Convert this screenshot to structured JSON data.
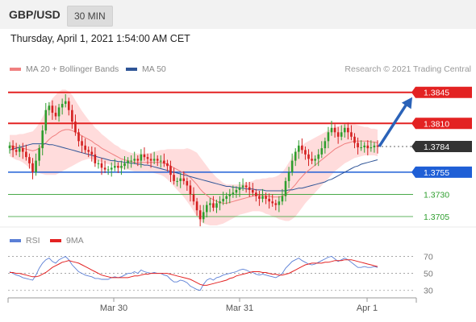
{
  "header": {
    "pair": "GBP/USD",
    "timeframe": "30 MIN"
  },
  "datetime": "Thursday, April 1, 2021 1:54:00 AM CET",
  "legend": {
    "ma": {
      "label": "MA 20 + Bollinger Bands",
      "color": "#f08080"
    },
    "ma50": {
      "label": "MA 50",
      "color": "#2f5597"
    },
    "credit": "Research © 2021 Trading Central"
  },
  "rsi_legend": {
    "rsi": {
      "label": "RSI",
      "color": "#5b7fd6"
    },
    "ma9": {
      "label": "9MA",
      "color": "#e32222"
    }
  },
  "colors": {
    "up": "#2e9e2e",
    "down": "#d42020",
    "resistance": "#e32222",
    "support": "#1f5fd6",
    "target": "#2e9e2e",
    "current": "#333333",
    "arrow": "#2a62b8",
    "band": "#ffd6d6"
  },
  "chart_data": [
    {
      "type": "candlestick",
      "x_ticks": [
        "Mar 30",
        "Mar 31",
        "Apr 1"
      ],
      "ylim": [
        1.3695,
        1.3862
      ],
      "levels": [
        {
          "label": "1.3845",
          "value": 1.3845,
          "kind": "resistance"
        },
        {
          "label": "1.3810",
          "value": 1.381,
          "kind": "resistance"
        },
        {
          "label": "1.3784",
          "value": 1.3784,
          "kind": "current"
        },
        {
          "label": "1.3755",
          "value": 1.3755,
          "kind": "support"
        },
        {
          "label": "1.3730",
          "value": 1.373,
          "kind": "target"
        },
        {
          "label": "1.3705",
          "value": 1.3705,
          "kind": "target"
        }
      ],
      "close": [
        1.3785,
        1.378,
        1.3778,
        1.3782,
        1.3778,
        1.3772,
        1.3765,
        1.3755,
        1.3768,
        1.3782,
        1.3802,
        1.3825,
        1.383,
        1.3822,
        1.3818,
        1.3828,
        1.3832,
        1.3835,
        1.3825,
        1.3812,
        1.38,
        1.379,
        1.3785,
        1.378,
        1.3778,
        1.3775,
        1.3765,
        1.3765,
        1.376,
        1.3758,
        1.3758,
        1.376,
        1.3762,
        1.376,
        1.3762,
        1.3765,
        1.3768,
        1.3768,
        1.377,
        1.3768,
        1.3775,
        1.3772,
        1.377,
        1.3768,
        1.377,
        1.3768,
        1.3768,
        1.3765,
        1.3762,
        1.3752,
        1.3745,
        1.3745,
        1.3748,
        1.3745,
        1.374,
        1.373,
        1.3722,
        1.3712,
        1.3702,
        1.371,
        1.3718,
        1.372,
        1.3715,
        1.372,
        1.3722,
        1.3725,
        1.3728,
        1.373,
        1.3732,
        1.3735,
        1.3738,
        1.374,
        1.3738,
        1.3735,
        1.3732,
        1.3728,
        1.3725,
        1.3728,
        1.3725,
        1.3722,
        1.372,
        1.3718,
        1.3722,
        1.3728,
        1.3745,
        1.3755,
        1.3768,
        1.3778,
        1.3785,
        1.378,
        1.3775,
        1.377,
        1.3768,
        1.377,
        1.3775,
        1.3782,
        1.379,
        1.38,
        1.3805,
        1.38,
        1.3795,
        1.38,
        1.3805,
        1.38,
        1.3795,
        1.3788,
        1.3783,
        1.3783,
        1.3785,
        1.3782,
        1.3783,
        1.3785,
        1.3784
      ],
      "ma20": [
        1.3785,
        1.3784,
        1.3783,
        1.3783,
        1.3782,
        1.3781,
        1.378,
        1.3779,
        1.378,
        1.3782,
        1.3785,
        1.3788,
        1.3792,
        1.3795,
        1.3797,
        1.38,
        1.3802,
        1.3803,
        1.3803,
        1.3802,
        1.38,
        1.3798,
        1.3796,
        1.3794,
        1.3792,
        1.379,
        1.3787,
        1.3785,
        1.3782,
        1.378,
        1.3778,
        1.3776,
        1.3774,
        1.3772,
        1.377,
        1.3769,
        1.3768,
        1.3767,
        1.3766,
        1.3766,
        1.3766,
        1.3766,
        1.3766,
        1.3766,
        1.3766,
        1.3766,
        1.3766,
        1.3765,
        1.3764,
        1.3762,
        1.376,
        1.3758,
        1.3756,
        1.3754,
        1.3752,
        1.3749,
        1.3745,
        1.3741,
        1.3736,
        1.3732,
        1.3729,
        1.3726,
        1.3724,
        1.3722,
        1.3721,
        1.372,
        1.372,
        1.3721,
        1.3722,
        1.3723,
        1.3724,
        1.3725,
        1.3726,
        1.3727,
        1.3728,
        1.3729,
        1.3729,
        1.3729,
        1.3728,
        1.3728,
        1.3727,
        1.3727,
        1.3727,
        1.3728,
        1.373,
        1.3733,
        1.3737,
        1.3741,
        1.3746,
        1.375,
        1.3754,
        1.3757,
        1.376,
        1.3763,
        1.3766,
        1.3769,
        1.3772,
        1.3775,
        1.3778,
        1.3781,
        1.3783,
        1.3785,
        1.3787,
        1.3788,
        1.3789,
        1.379,
        1.379,
        1.379,
        1.379,
        1.379,
        1.3789,
        1.3789,
        1.3788
      ],
      "bb_width": [
        0.0012,
        0.0013,
        0.0014,
        0.0015,
        0.0016,
        0.0018,
        0.002,
        0.0022,
        0.0025,
        0.0028,
        0.0032,
        0.0036,
        0.004,
        0.0043,
        0.0045,
        0.0046,
        0.0046,
        0.0045,
        0.0043,
        0.004,
        0.0036,
        0.0032,
        0.0028,
        0.0025,
        0.0022,
        0.002,
        0.0018,
        0.0017,
        0.0016,
        0.0015,
        0.0014,
        0.0013,
        0.0012,
        0.0012,
        0.0011,
        0.0011,
        0.001,
        0.001,
        0.001,
        0.001,
        0.001,
        0.001,
        0.001,
        0.0011,
        0.0012,
        0.0013,
        0.0014,
        0.0015,
        0.0017,
        0.0019,
        0.0021,
        0.0023,
        0.0025,
        0.0027,
        0.003,
        0.0032,
        0.0034,
        0.0036,
        0.0036,
        0.0035,
        0.0033,
        0.0031,
        0.0029,
        0.0027,
        0.0025,
        0.0023,
        0.0021,
        0.002,
        0.0019,
        0.0018,
        0.0017,
        0.0017,
        0.0017,
        0.0017,
        0.0017,
        0.0018,
        0.0018,
        0.0019,
        0.002,
        0.0021,
        0.0022,
        0.0023,
        0.0025,
        0.0027,
        0.003,
        0.0033,
        0.0035,
        0.0036,
        0.0036,
        0.0035,
        0.0034,
        0.0033,
        0.0032,
        0.0031,
        0.003,
        0.0029,
        0.0028,
        0.0027,
        0.0026,
        0.0025,
        0.0024,
        0.0023,
        0.0022,
        0.0021,
        0.002,
        0.0019,
        0.0018,
        0.0017,
        0.0016,
        0.0016,
        0.0015,
        0.0015,
        0.0015
      ],
      "ma50": [
        1.378,
        1.3781,
        1.3782,
        1.3783,
        1.3784,
        1.3785,
        1.3786,
        1.3787,
        1.3787,
        1.3787,
        1.3787,
        1.3787,
        1.3786,
        1.3786,
        1.3785,
        1.3784,
        1.3783,
        1.3782,
        1.3781,
        1.378,
        1.3779,
        1.3778,
        1.3777,
        1.3776,
        1.3775,
        1.3774,
        1.3773,
        1.3772,
        1.3771,
        1.377,
        1.3769,
        1.3768,
        1.3768,
        1.3767,
        1.3767,
        1.3766,
        1.3766,
        1.3765,
        1.3765,
        1.3764,
        1.3764,
        1.3763,
        1.3763,
        1.3762,
        1.3761,
        1.376,
        1.3759,
        1.3758,
        1.3757,
        1.3756,
        1.3755,
        1.3754,
        1.3753,
        1.3752,
        1.3751,
        1.375,
        1.3749,
        1.3748,
        1.3747,
        1.3746,
        1.3745,
        1.3744,
        1.3743,
        1.3742,
        1.3741,
        1.374,
        1.3739,
        1.3739,
        1.3738,
        1.3738,
        1.3737,
        1.3737,
        1.3736,
        1.3736,
        1.3736,
        1.3735,
        1.3735,
        1.3735,
        1.3734,
        1.3734,
        1.3734,
        1.3734,
        1.3734,
        1.3734,
        1.3734,
        1.3735,
        1.3735,
        1.3736,
        1.3737,
        1.3737,
        1.3738,
        1.3739,
        1.374,
        1.3741,
        1.3742,
        1.3743,
        1.3744,
        1.3746,
        1.3747,
        1.3749,
        1.3751,
        1.3753,
        1.3755,
        1.3757,
        1.3759,
        1.3761,
        1.3762,
        1.3764,
        1.3765,
        1.3766,
        1.3767,
        1.3768,
        1.3769
      ]
    },
    {
      "type": "line",
      "title": "RSI",
      "ylim": [
        25,
        78
      ],
      "y_ticks": [
        "70",
        "50",
        "30"
      ],
      "series": [
        {
          "name": "RSI",
          "values": [
            52,
            50,
            48,
            47,
            45,
            44,
            43,
            42,
            48,
            56,
            62,
            66,
            68,
            64,
            62,
            66,
            68,
            70,
            66,
            60,
            56,
            52,
            50,
            48,
            47,
            46,
            44,
            44,
            43,
            43,
            43,
            45,
            46,
            45,
            46,
            48,
            50,
            50,
            52,
            50,
            54,
            52,
            51,
            50,
            51,
            50,
            50,
            48,
            47,
            43,
            40,
            40,
            42,
            41,
            39,
            35,
            33,
            31,
            30,
            37,
            42,
            44,
            42,
            45,
            46,
            48,
            49,
            50,
            51,
            52,
            54,
            55,
            54,
            52,
            51,
            49,
            48,
            49,
            48,
            47,
            46,
            45,
            47,
            50,
            56,
            60,
            64,
            66,
            68,
            65,
            63,
            61,
            60,
            61,
            63,
            65,
            67,
            69,
            70,
            67,
            64,
            66,
            68,
            66,
            63,
            60,
            57,
            57,
            58,
            57,
            57,
            58,
            57
          ]
        },
        {
          "name": "9MA",
          "values": [
            51,
            51,
            50,
            50,
            49,
            48,
            47,
            46,
            46,
            47,
            49,
            51,
            54,
            57,
            59,
            61,
            63,
            64,
            65,
            64,
            63,
            62,
            60,
            58,
            56,
            54,
            52,
            50,
            48,
            47,
            46,
            45,
            45,
            45,
            45,
            45,
            45,
            46,
            47,
            47,
            48,
            49,
            49,
            50,
            50,
            50,
            50,
            50,
            50,
            49,
            48,
            47,
            46,
            45,
            44,
            43,
            41,
            39,
            37,
            36,
            36,
            37,
            38,
            39,
            40,
            41,
            42,
            44,
            45,
            47,
            48,
            49,
            50,
            51,
            52,
            52,
            52,
            51,
            51,
            50,
            49,
            49,
            48,
            48,
            49,
            50,
            52,
            54,
            56,
            58,
            60,
            61,
            62,
            62,
            62,
            62,
            63,
            63,
            64,
            65,
            65,
            65,
            66,
            66,
            66,
            65,
            64,
            63,
            62,
            61,
            60,
            59,
            58
          ]
        }
      ]
    }
  ]
}
